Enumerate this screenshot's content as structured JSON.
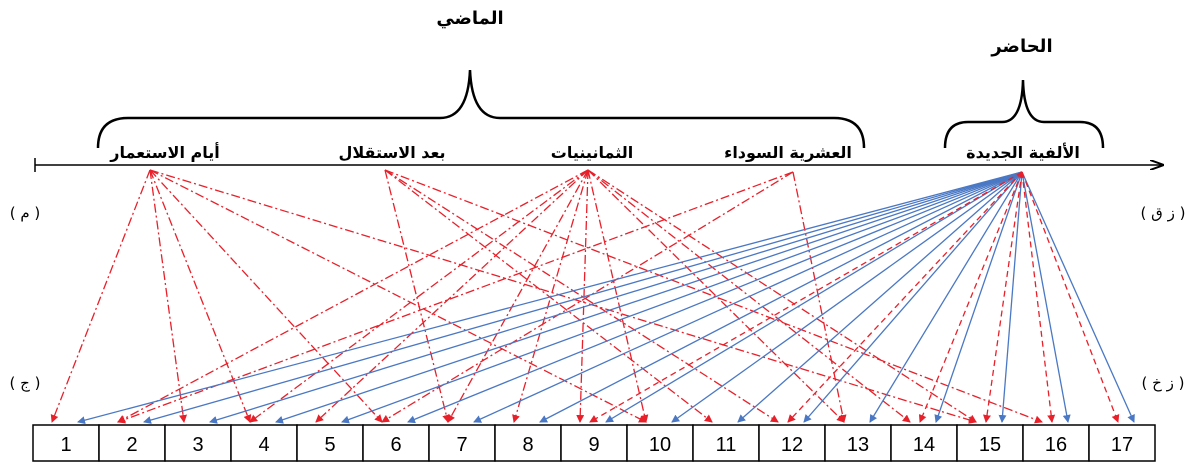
{
  "group_labels": {
    "past": "الماضي",
    "present": "الحاضر"
  },
  "eras": {
    "colonial": "أيام الاستعمار",
    "post_independence": "بعد الاستقلال",
    "eighties": "الثمانينيات",
    "black_decade": "العشرية السوداء",
    "new_millennium": "الألفية الجديدة"
  },
  "side_labels": {
    "top_right": "( ز ق )",
    "top_left": "( م )",
    "bottom_right": "( ز خ )",
    "bottom_left": "( ج )"
  },
  "numbers": [
    "1",
    "2",
    "3",
    "4",
    "5",
    "6",
    "7",
    "8",
    "9",
    "10",
    "11",
    "12",
    "13",
    "14",
    "15",
    "16",
    "17"
  ],
  "colors": {
    "past_links": "#e8202a",
    "present_links": "#4a78c4",
    "axis": "#000000"
  },
  "links": {
    "colonial": [
      1,
      3,
      4,
      6,
      10,
      15
    ],
    "post_independence": [
      7,
      11,
      12,
      16
    ],
    "eighties": [
      2,
      4,
      5,
      7,
      8,
      9,
      10,
      13,
      14,
      15
    ],
    "black_decade": [
      2,
      6,
      13
    ],
    "new_millennium_blue": [
      1,
      2,
      3,
      4,
      5,
      6,
      7,
      8,
      9,
      10,
      11,
      12,
      13,
      14,
      15,
      16,
      17
    ],
    "new_millennium_red": [
      9,
      12,
      14,
      15,
      16,
      17
    ]
  }
}
